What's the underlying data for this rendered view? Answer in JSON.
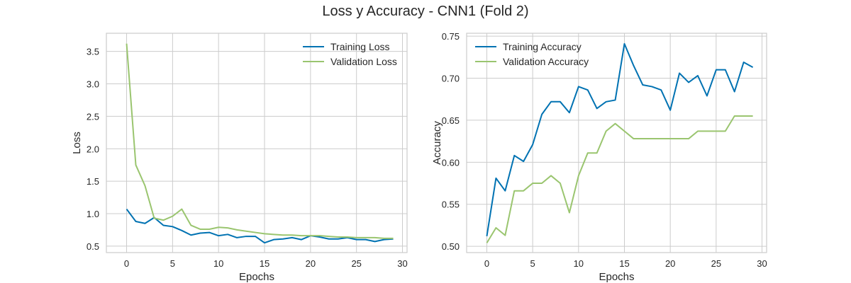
{
  "figure": {
    "title": "Loss y Accuracy - CNN1 (Fold 2)"
  },
  "colors": {
    "training": "#0072b2",
    "validation": "#9ac56f",
    "grid": "#cccccc"
  },
  "chart_data": [
    {
      "type": "line",
      "xlabel": "Epochs",
      "ylabel": "Loss",
      "xlim": [
        -2.2,
        30.5
      ],
      "ylim": [
        0.4,
        3.78
      ],
      "xticks": [
        0,
        5,
        10,
        15,
        20,
        25,
        30
      ],
      "yticks": [
        0.5,
        1.0,
        1.5,
        2.0,
        2.5,
        3.0,
        3.5
      ],
      "ytick_labels": [
        "0.5",
        "1.0",
        "1.5",
        "2.0",
        "2.5",
        "3.0",
        "3.5"
      ],
      "legend_position": "top-right",
      "grid": true,
      "x": [
        0,
        1,
        2,
        3,
        4,
        5,
        6,
        7,
        8,
        9,
        10,
        11,
        12,
        13,
        14,
        15,
        16,
        17,
        18,
        19,
        20,
        21,
        22,
        23,
        24,
        25,
        26,
        27,
        28,
        29
      ],
      "series": [
        {
          "name": "Training Loss",
          "color_key": "training",
          "values": [
            1.07,
            0.88,
            0.85,
            0.94,
            0.82,
            0.8,
            0.74,
            0.67,
            0.7,
            0.71,
            0.66,
            0.68,
            0.63,
            0.65,
            0.65,
            0.55,
            0.6,
            0.61,
            0.63,
            0.6,
            0.66,
            0.64,
            0.61,
            0.61,
            0.63,
            0.6,
            0.6,
            0.57,
            0.6,
            0.61
          ]
        },
        {
          "name": "Validation Loss",
          "color_key": "validation",
          "values": [
            3.62,
            1.75,
            1.43,
            0.93,
            0.9,
            0.96,
            1.07,
            0.82,
            0.76,
            0.76,
            0.79,
            0.78,
            0.75,
            0.73,
            0.71,
            0.69,
            0.68,
            0.67,
            0.67,
            0.66,
            0.66,
            0.66,
            0.65,
            0.64,
            0.64,
            0.63,
            0.63,
            0.63,
            0.62,
            0.62
          ]
        }
      ]
    },
    {
      "type": "line",
      "xlabel": "Epochs",
      "ylabel": "Accuracy",
      "xlim": [
        -2.2,
        30.5
      ],
      "ylim": [
        0.4925,
        0.7535
      ],
      "xticks": [
        0,
        5,
        10,
        15,
        20,
        25,
        30
      ],
      "yticks": [
        0.5,
        0.55,
        0.6,
        0.65,
        0.7,
        0.75
      ],
      "ytick_labels": [
        "0.50",
        "0.55",
        "0.60",
        "0.65",
        "0.70",
        "0.75"
      ],
      "legend_position": "top-left",
      "grid": true,
      "x": [
        0,
        1,
        2,
        3,
        4,
        5,
        6,
        7,
        8,
        9,
        10,
        11,
        12,
        13,
        14,
        15,
        16,
        17,
        18,
        19,
        20,
        21,
        22,
        23,
        24,
        25,
        26,
        27,
        28,
        29
      ],
      "series": [
        {
          "name": "Training Accuracy",
          "color_key": "training",
          "values": [
            0.512,
            0.581,
            0.566,
            0.608,
            0.601,
            0.621,
            0.657,
            0.672,
            0.672,
            0.659,
            0.69,
            0.686,
            0.664,
            0.672,
            0.674,
            0.741,
            0.715,
            0.692,
            0.69,
            0.686,
            0.662,
            0.706,
            0.695,
            0.703,
            0.679,
            0.71,
            0.71,
            0.684,
            0.719,
            0.713
          ]
        },
        {
          "name": "Validation Accuracy",
          "color_key": "validation",
          "values": [
            0.504,
            0.522,
            0.513,
            0.566,
            0.566,
            0.575,
            0.575,
            0.584,
            0.575,
            0.54,
            0.584,
            0.611,
            0.611,
            0.637,
            0.646,
            0.637,
            0.628,
            0.628,
            0.628,
            0.628,
            0.628,
            0.628,
            0.628,
            0.637,
            0.637,
            0.637,
            0.637,
            0.655,
            0.655,
            0.655
          ]
        }
      ]
    }
  ]
}
